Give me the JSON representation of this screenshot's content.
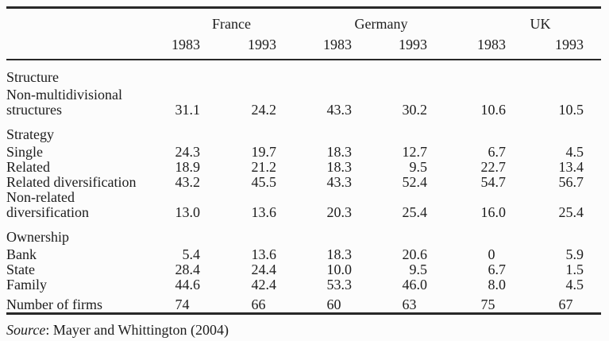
{
  "table": {
    "countries": [
      "France",
      "Germany",
      "UK"
    ],
    "year_headers": [
      "1983",
      "1993",
      "1983",
      "1993",
      "1983",
      "1993"
    ],
    "rows": [
      {
        "type": "section",
        "label": "Structure"
      },
      {
        "type": "data",
        "label": "Non-multidivisional\nstructures",
        "values": [
          "31.1",
          "24.2",
          "43.3",
          "30.2",
          "10.6",
          "10.5"
        ]
      },
      {
        "type": "section",
        "label": "Strategy"
      },
      {
        "type": "data",
        "label": "Single",
        "values": [
          "24.3",
          "19.7",
          "18.3",
          "12.7",
          "6.7",
          "4.5"
        ]
      },
      {
        "type": "data",
        "label": "Related",
        "values": [
          "18.9",
          "21.2",
          "18.3",
          "9.5",
          "22.7",
          "13.4"
        ]
      },
      {
        "type": "data",
        "label": "Related diversification",
        "values": [
          "43.2",
          "45.5",
          "43.3",
          "52.4",
          "54.7",
          "56.7"
        ]
      },
      {
        "type": "data",
        "label": "Non-related\ndiversification",
        "values": [
          "13.0",
          "13.6",
          "20.3",
          "25.4",
          "16.0",
          "25.4"
        ]
      },
      {
        "type": "section",
        "label": "Ownership"
      },
      {
        "type": "data",
        "label": "Bank",
        "values": [
          "5.4",
          "13.6",
          "18.3",
          "20.6",
          "0",
          "5.9"
        ]
      },
      {
        "type": "data",
        "label": "State",
        "values": [
          "28.4",
          "24.4",
          "10.0",
          "9.5",
          "6.7",
          "1.5"
        ]
      },
      {
        "type": "data",
        "label": "Family",
        "values": [
          "44.6",
          "42.4",
          "53.3",
          "46.0",
          "8.0",
          "4.5"
        ]
      },
      {
        "type": "data",
        "label": "Number of firms",
        "values": [
          "74",
          "66",
          "60",
          "63",
          "75",
          "67"
        ],
        "gap_before": true
      }
    ]
  },
  "source": {
    "label": "Source",
    "citation": ": Mayer and Whittington (2004)"
  },
  "colors": {
    "text": "#1d1d1d",
    "rule": "#282828",
    "background": "#fcfcfc"
  }
}
